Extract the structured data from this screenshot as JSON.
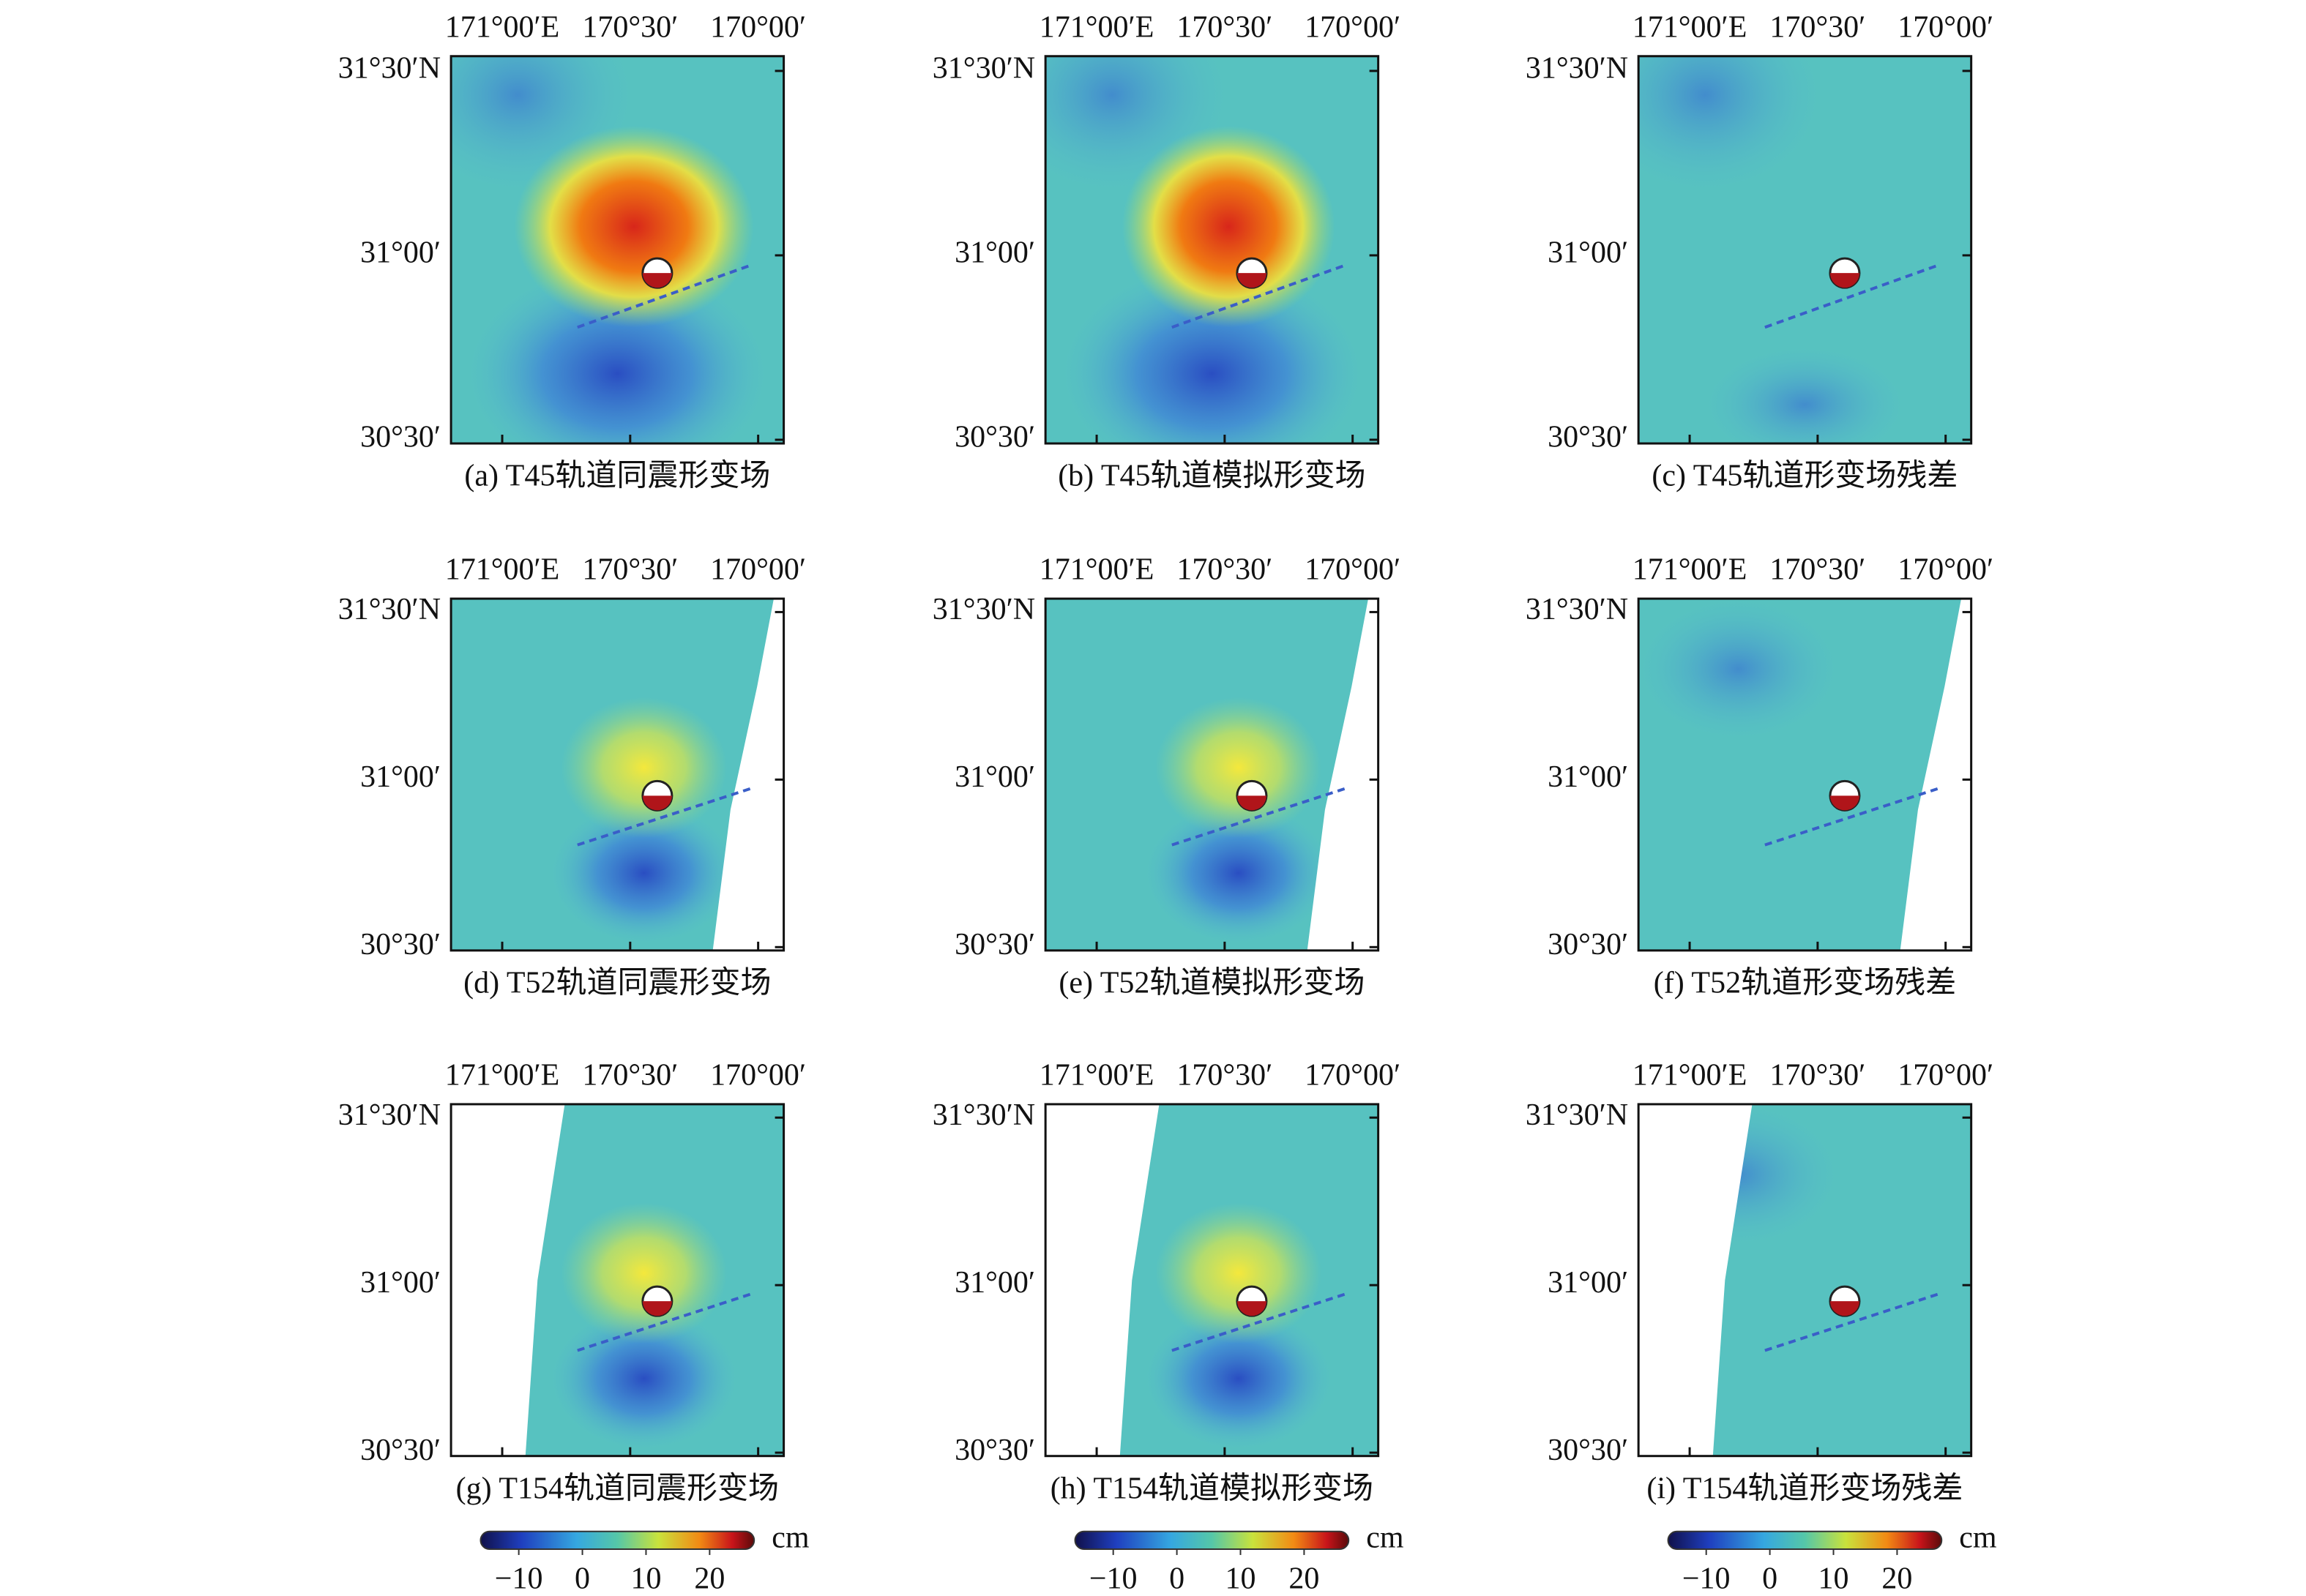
{
  "figure": {
    "panels": [
      {
        "caption": "(a) T45轨道同震形变场"
      },
      {
        "caption": "(b) T45轨道模拟形变场"
      },
      {
        "caption": "(c) T45轨道形变场残差"
      },
      {
        "caption": "(d) T52轨道同震形变场"
      },
      {
        "caption": "(e) T52轨道模拟形变场"
      },
      {
        "caption": "(f) T52轨道形变场残差"
      },
      {
        "caption": "(g) T154轨道同震形变场"
      },
      {
        "caption": "(h) T154轨道模拟形变场"
      },
      {
        "caption": "(i) T154轨道形变场残差"
      }
    ],
    "xlim": [
      171.2,
      169.9
    ],
    "xticks": [
      {
        "value": 171,
        "label": "171°00′E"
      },
      {
        "value": 170.5,
        "label": "170°30′"
      },
      {
        "value": 170,
        "label": "170°00′"
      }
    ],
    "ylim": [
      30.49,
      31.54
    ],
    "yticks": [
      {
        "value": 31.5,
        "label": "31°30′N"
      },
      {
        "value": 31,
        "label": "31°00′"
      },
      {
        "value": 30.5,
        "label": "30°30′"
      }
    ],
    "colorbars": [
      {
        "unit": "cm",
        "clim": [
          -16,
          27
        ],
        "ticks": [
          {
            "value": -10,
            "label": "−10"
          },
          0,
          10,
          20
        ]
      },
      {
        "unit": "cm",
        "clim": [
          -16,
          27
        ],
        "ticks": [
          {
            "value": -10,
            "label": "−10"
          },
          0,
          10,
          20
        ]
      },
      {
        "unit": "cm",
        "clim": [
          -16,
          27
        ],
        "ticks": [
          {
            "value": -10,
            "label": "−10"
          },
          0,
          10,
          20
        ]
      }
    ]
  }
}
